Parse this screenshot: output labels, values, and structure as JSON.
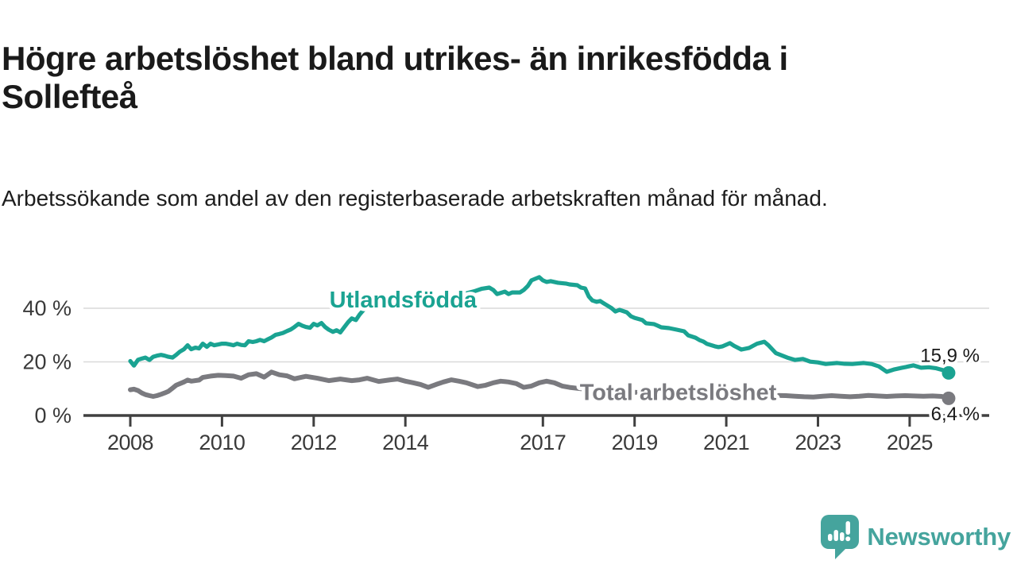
{
  "page": {
    "title": "Högre arbetslöshet bland utrikes- än inrikesfödda i Sollefteå",
    "subtitle": "Arbetssökande som andel av den registerbaserade arbetskraften månad för månad."
  },
  "branding": {
    "logo_text": "Newsworthy",
    "logo_color": "#45a49d",
    "logo_icon": "speech-bubble-bar-chart-icon"
  },
  "chart_data": {
    "type": "line",
    "title": "Högre arbetslöshet bland utrikes- än inrikesfödda i Sollefteå",
    "subtitle": "Arbetssökande som andel av den registerbaserade arbetskraften månad för månad.",
    "unit": "%",
    "x_axis": {
      "range": [
        2007.0,
        2026.75
      ],
      "ticks": [
        {
          "value": 2008,
          "label": "2008"
        },
        {
          "value": 2010,
          "label": "2010"
        },
        {
          "value": 2012,
          "label": "2012"
        },
        {
          "value": 2014,
          "label": "2014"
        },
        {
          "value": 2017,
          "label": "2017"
        },
        {
          "value": 2019,
          "label": "2019"
        },
        {
          "value": 2021,
          "label": "2021"
        },
        {
          "value": 2023,
          "label": "2023"
        },
        {
          "value": 2025,
          "label": "2025"
        }
      ],
      "gridlines": false
    },
    "y_axis": {
      "range": [
        0,
        54
      ],
      "ticks": [
        {
          "value": 0,
          "label": "0 %"
        },
        {
          "value": 20,
          "label": "20 %"
        },
        {
          "value": 40,
          "label": "40 %"
        }
      ],
      "gridlines": true,
      "gridline_color": "#d9d9d9"
    },
    "axis_color": "#404040",
    "tick_label_color": "#3a3a3a",
    "legend_position": "inline-labels",
    "series": [
      {
        "id": "utlandsfodda",
        "name": "Utlandsfödda",
        "color": "#1aa392",
        "end_label": "15,9 %",
        "end_value": 15.9,
        "label_anchor": {
          "x": 2013.95,
          "y": 43.2
        },
        "points": [
          [
            2008.0,
            20.3
          ],
          [
            2008.08,
            18.6
          ],
          [
            2008.17,
            20.8
          ],
          [
            2008.25,
            21.2
          ],
          [
            2008.33,
            21.6
          ],
          [
            2008.42,
            20.7
          ],
          [
            2008.5,
            21.9
          ],
          [
            2008.58,
            22.3
          ],
          [
            2008.67,
            22.6
          ],
          [
            2008.75,
            22.3
          ],
          [
            2008.83,
            21.9
          ],
          [
            2008.92,
            21.6
          ],
          [
            2009.0,
            22.6
          ],
          [
            2009.08,
            23.8
          ],
          [
            2009.17,
            24.7
          ],
          [
            2009.25,
            26.2
          ],
          [
            2009.33,
            24.7
          ],
          [
            2009.42,
            25.3
          ],
          [
            2009.5,
            25.0
          ],
          [
            2009.58,
            26.8
          ],
          [
            2009.67,
            25.6
          ],
          [
            2009.75,
            26.8
          ],
          [
            2009.83,
            26.2
          ],
          [
            2009.92,
            26.5
          ],
          [
            2010.0,
            26.8
          ],
          [
            2010.08,
            26.8
          ],
          [
            2010.17,
            26.5
          ],
          [
            2010.25,
            26.2
          ],
          [
            2010.33,
            26.8
          ],
          [
            2010.42,
            26.3
          ],
          [
            2010.5,
            26.2
          ],
          [
            2010.58,
            27.7
          ],
          [
            2010.67,
            27.4
          ],
          [
            2010.75,
            27.7
          ],
          [
            2010.83,
            28.2
          ],
          [
            2010.92,
            27.7
          ],
          [
            2011.0,
            28.4
          ],
          [
            2011.08,
            29.1
          ],
          [
            2011.17,
            30.1
          ],
          [
            2011.25,
            30.4
          ],
          [
            2011.33,
            30.8
          ],
          [
            2011.42,
            31.5
          ],
          [
            2011.5,
            32.1
          ],
          [
            2011.58,
            33.0
          ],
          [
            2011.67,
            34.2
          ],
          [
            2011.75,
            33.5
          ],
          [
            2011.83,
            33.0
          ],
          [
            2011.92,
            32.7
          ],
          [
            2012.0,
            34.2
          ],
          [
            2012.08,
            33.6
          ],
          [
            2012.17,
            34.5
          ],
          [
            2012.25,
            33.0
          ],
          [
            2012.33,
            32.0
          ],
          [
            2012.42,
            31.2
          ],
          [
            2012.5,
            31.8
          ],
          [
            2012.58,
            31.0
          ],
          [
            2012.67,
            33.0
          ],
          [
            2012.75,
            34.8
          ],
          [
            2012.83,
            36.2
          ],
          [
            2012.92,
            35.6
          ],
          [
            2013.0,
            37.6
          ],
          [
            2013.08,
            39.2
          ],
          [
            2013.17,
            40.6
          ],
          [
            2013.33,
            40.9
          ],
          [
            2013.5,
            41.3
          ],
          [
            2013.75,
            41.9
          ],
          [
            2014.0,
            42.4
          ],
          [
            2014.25,
            42.9
          ],
          [
            2014.5,
            43.5
          ],
          [
            2014.75,
            44.0
          ],
          [
            2015.0,
            44.5
          ],
          [
            2015.25,
            45.2
          ],
          [
            2015.5,
            46.3
          ],
          [
            2015.67,
            47.3
          ],
          [
            2015.83,
            47.7
          ],
          [
            2015.92,
            46.8
          ],
          [
            2016.0,
            45.3
          ],
          [
            2016.17,
            46.2
          ],
          [
            2016.25,
            45.3
          ],
          [
            2016.33,
            45.9
          ],
          [
            2016.5,
            45.9
          ],
          [
            2016.58,
            46.8
          ],
          [
            2016.67,
            48.3
          ],
          [
            2016.75,
            50.4
          ],
          [
            2016.92,
            51.6
          ],
          [
            2017.0,
            50.4
          ],
          [
            2017.08,
            49.8
          ],
          [
            2017.17,
            50.1
          ],
          [
            2017.33,
            49.5
          ],
          [
            2017.5,
            49.2
          ],
          [
            2017.58,
            48.9
          ],
          [
            2017.75,
            48.6
          ],
          [
            2017.83,
            47.7
          ],
          [
            2017.92,
            47.4
          ],
          [
            2018.0,
            44.4
          ],
          [
            2018.08,
            42.9
          ],
          [
            2018.17,
            42.4
          ],
          [
            2018.25,
            42.7
          ],
          [
            2018.33,
            41.8
          ],
          [
            2018.5,
            40.0
          ],
          [
            2018.58,
            38.8
          ],
          [
            2018.67,
            39.4
          ],
          [
            2018.83,
            38.5
          ],
          [
            2018.92,
            37.0
          ],
          [
            2019.0,
            36.4
          ],
          [
            2019.17,
            35.6
          ],
          [
            2019.25,
            34.4
          ],
          [
            2019.42,
            34.1
          ],
          [
            2019.5,
            33.5
          ],
          [
            2019.58,
            32.9
          ],
          [
            2019.75,
            32.6
          ],
          [
            2019.92,
            32.0
          ],
          [
            2020.08,
            31.4
          ],
          [
            2020.17,
            29.9
          ],
          [
            2020.33,
            29.0
          ],
          [
            2020.42,
            28.1
          ],
          [
            2020.5,
            27.6
          ],
          [
            2020.58,
            26.7
          ],
          [
            2020.75,
            25.8
          ],
          [
            2020.83,
            25.5
          ],
          [
            2020.92,
            25.8
          ],
          [
            2021.08,
            27.0
          ],
          [
            2021.17,
            26.0
          ],
          [
            2021.33,
            24.6
          ],
          [
            2021.5,
            25.2
          ],
          [
            2021.67,
            26.8
          ],
          [
            2021.83,
            27.5
          ],
          [
            2021.92,
            26.2
          ],
          [
            2022.08,
            23.3
          ],
          [
            2022.33,
            21.6
          ],
          [
            2022.5,
            20.7
          ],
          [
            2022.67,
            21.1
          ],
          [
            2022.83,
            20.1
          ],
          [
            2023.0,
            19.8
          ],
          [
            2023.17,
            19.2
          ],
          [
            2023.42,
            19.6
          ],
          [
            2023.58,
            19.3
          ],
          [
            2023.75,
            19.2
          ],
          [
            2024.0,
            19.6
          ],
          [
            2024.17,
            19.2
          ],
          [
            2024.33,
            18.3
          ],
          [
            2024.5,
            16.3
          ],
          [
            2024.67,
            17.2
          ],
          [
            2024.83,
            17.8
          ],
          [
            2024.92,
            18.1
          ],
          [
            2025.08,
            18.7
          ],
          [
            2025.25,
            17.8
          ],
          [
            2025.42,
            18.0
          ],
          [
            2025.58,
            17.6
          ],
          [
            2025.75,
            16.8
          ],
          [
            2025.85,
            15.9
          ]
        ]
      },
      {
        "id": "total",
        "name": "Total arbetslöshet",
        "color": "#7a7a7f",
        "end_label": "6,4 %",
        "end_value": 6.4,
        "label_anchor": {
          "x": 2019.95,
          "y": 8.8
        },
        "points": [
          [
            2008.0,
            9.6
          ],
          [
            2008.08,
            9.8
          ],
          [
            2008.17,
            9.3
          ],
          [
            2008.25,
            8.4
          ],
          [
            2008.33,
            7.8
          ],
          [
            2008.42,
            7.4
          ],
          [
            2008.5,
            7.1
          ],
          [
            2008.58,
            7.4
          ],
          [
            2008.67,
            7.9
          ],
          [
            2008.75,
            8.4
          ],
          [
            2008.83,
            9.0
          ],
          [
            2008.92,
            10.2
          ],
          [
            2009.0,
            11.3
          ],
          [
            2009.17,
            12.5
          ],
          [
            2009.25,
            13.2
          ],
          [
            2009.33,
            12.8
          ],
          [
            2009.5,
            13.2
          ],
          [
            2009.58,
            14.2
          ],
          [
            2009.75,
            14.7
          ],
          [
            2009.92,
            15.0
          ],
          [
            2010.08,
            14.9
          ],
          [
            2010.25,
            14.7
          ],
          [
            2010.42,
            13.9
          ],
          [
            2010.58,
            15.2
          ],
          [
            2010.75,
            15.6
          ],
          [
            2010.92,
            14.3
          ],
          [
            2011.08,
            16.2
          ],
          [
            2011.25,
            15.2
          ],
          [
            2011.42,
            14.8
          ],
          [
            2011.58,
            13.7
          ],
          [
            2011.83,
            14.6
          ],
          [
            2012.08,
            13.9
          ],
          [
            2012.33,
            13.0
          ],
          [
            2012.58,
            13.6
          ],
          [
            2012.83,
            13.0
          ],
          [
            2013.0,
            13.3
          ],
          [
            2013.17,
            13.9
          ],
          [
            2013.42,
            12.7
          ],
          [
            2013.67,
            13.3
          ],
          [
            2013.83,
            13.6
          ],
          [
            2014.0,
            12.8
          ],
          [
            2014.17,
            12.2
          ],
          [
            2014.33,
            11.6
          ],
          [
            2014.5,
            10.5
          ],
          [
            2014.67,
            11.6
          ],
          [
            2014.83,
            12.5
          ],
          [
            2015.0,
            13.3
          ],
          [
            2015.17,
            12.8
          ],
          [
            2015.33,
            12.2
          ],
          [
            2015.58,
            10.8
          ],
          [
            2015.75,
            11.3
          ],
          [
            2015.92,
            12.2
          ],
          [
            2016.08,
            12.8
          ],
          [
            2016.25,
            12.5
          ],
          [
            2016.42,
            11.9
          ],
          [
            2016.58,
            10.5
          ],
          [
            2016.75,
            11.0
          ],
          [
            2016.92,
            12.2
          ],
          [
            2017.08,
            12.8
          ],
          [
            2017.25,
            12.2
          ],
          [
            2017.42,
            11.0
          ],
          [
            2017.58,
            10.5
          ],
          [
            2017.83,
            10.0
          ],
          [
            2018.08,
            9.6
          ],
          [
            2018.33,
            9.3
          ],
          [
            2018.58,
            9.0
          ],
          [
            2018.83,
            8.8
          ],
          [
            2019.08,
            8.6
          ],
          [
            2019.33,
            8.4
          ],
          [
            2019.58,
            8.3
          ],
          [
            2019.83,
            8.4
          ],
          [
            2020.08,
            8.7
          ],
          [
            2020.33,
            8.9
          ],
          [
            2020.58,
            8.8
          ],
          [
            2020.83,
            8.5
          ],
          [
            2021.08,
            8.2
          ],
          [
            2021.33,
            7.9
          ],
          [
            2021.58,
            7.7
          ],
          [
            2021.83,
            7.6
          ],
          [
            2022.08,
            7.5
          ],
          [
            2022.3,
            7.4
          ],
          [
            2022.5,
            7.2
          ],
          [
            2022.7,
            7.0
          ],
          [
            2022.9,
            6.9
          ],
          [
            2023.1,
            7.2
          ],
          [
            2023.3,
            7.4
          ],
          [
            2023.5,
            7.2
          ],
          [
            2023.7,
            7.0
          ],
          [
            2023.9,
            7.2
          ],
          [
            2024.1,
            7.5
          ],
          [
            2024.3,
            7.3
          ],
          [
            2024.5,
            7.1
          ],
          [
            2024.7,
            7.3
          ],
          [
            2024.9,
            7.4
          ],
          [
            2025.1,
            7.3
          ],
          [
            2025.3,
            7.2
          ],
          [
            2025.5,
            7.3
          ],
          [
            2025.7,
            7.1
          ],
          [
            2025.85,
            6.4
          ]
        ]
      }
    ]
  }
}
